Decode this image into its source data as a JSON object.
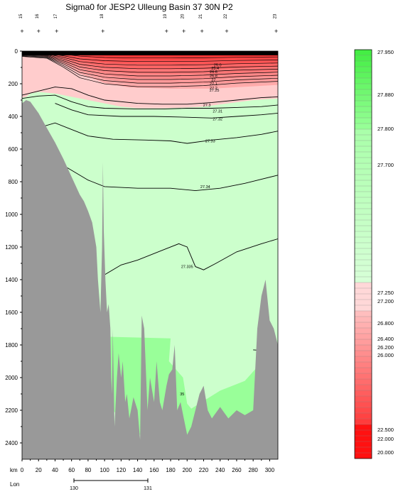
{
  "title": "Sigma0 for JESP2 Ulleung Basin 37 30N P2",
  "chart_data": {
    "type": "heatmap",
    "title": "Sigma0 for JESP2 Ulleung Basin 37 30N P2",
    "xlabel": "km",
    "secondary_xlabel": "Lon",
    "y_reversed": true,
    "xlim": [
      0,
      310
    ],
    "ylim": [
      0,
      2500
    ],
    "x_ticks": [
      "0",
      "20",
      "40",
      "60",
      "80",
      "100",
      "120",
      "140",
      "160",
      "180",
      "200",
      "220",
      "240",
      "260",
      "280",
      "300"
    ],
    "y_ticks": [
      "0",
      "200",
      "400",
      "600",
      "800",
      "1000",
      "1200",
      "1400",
      "1600",
      "1800",
      "2000",
      "2200",
      "2400"
    ],
    "lon_ticks": [
      "130",
      "131"
    ],
    "station_labels": [
      "15",
      "16",
      "17",
      "18",
      "19",
      "20",
      "21",
      "22",
      "23"
    ],
    "station_km": [
      0,
      20,
      42,
      98,
      175,
      196,
      218,
      248,
      308
    ],
    "contour_labels": [
      {
        "text": "24.8",
        "x": 267,
        "y": 15
      },
      {
        "text": "25.0",
        "x": 237,
        "y": 85
      },
      {
        "text": "25.4",
        "x": 234,
        "y": 105
      },
      {
        "text": "26.6",
        "x": 232,
        "y": 125
      },
      {
        "text": "26.8",
        "x": 232,
        "y": 150
      },
      {
        "text": "27",
        "x": 232,
        "y": 175
      },
      {
        "text": "27.1",
        "x": 232,
        "y": 200
      },
      {
        "text": "27.2",
        "x": 232,
        "y": 225
      },
      {
        "text": "27.25",
        "x": 233,
        "y": 240
      },
      {
        "text": "27.3",
        "x": 224,
        "y": 330
      },
      {
        "text": "27.31",
        "x": 237,
        "y": 368
      },
      {
        "text": "27.32",
        "x": 237,
        "y": 415
      },
      {
        "text": "27.33",
        "x": 228,
        "y": 550
      },
      {
        "text": "27.34",
        "x": 222,
        "y": 830
      },
      {
        "text": "27.335",
        "x": 200,
        "y": 1320
      },
      {
        "text": "35",
        "x": 194,
        "y": 2100
      }
    ],
    "colorbar": {
      "labels": [
        "27.950",
        "27.880",
        "27.800",
        "27.700",
        "27.250",
        "27.200",
        "26.800",
        "26.400",
        "26.200",
        "26.000",
        "22.500",
        "22.000",
        "20.000"
      ],
      "colors": {
        "green": "#44ee44",
        "lightgreen": "#ccffcc",
        "pink": "#ffcccc",
        "red": "#ff2222"
      }
    }
  }
}
